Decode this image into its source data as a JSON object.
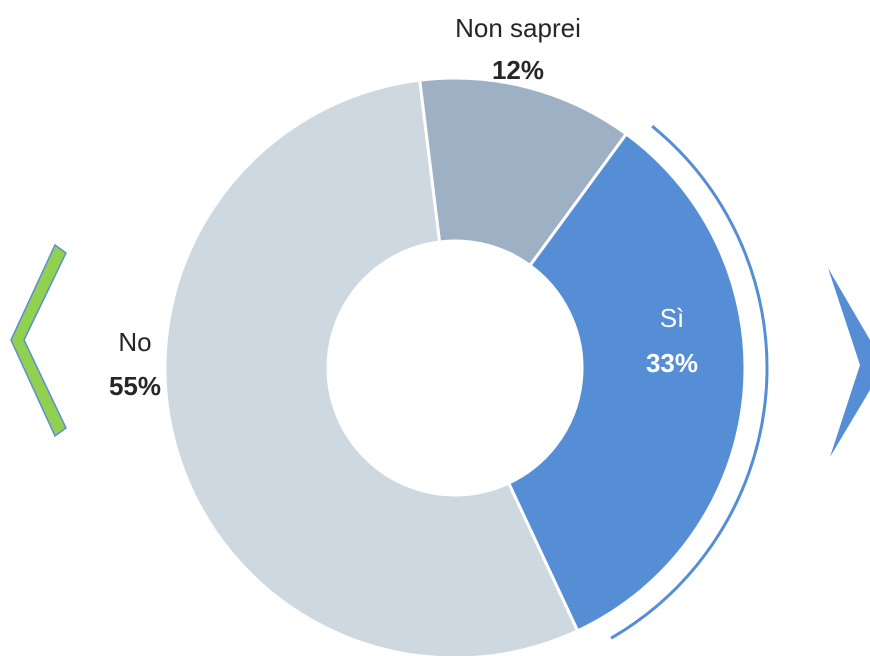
{
  "chart_data": {
    "type": "donut",
    "categories": [
      "Non saprei",
      "Sì",
      "No"
    ],
    "values": [
      12,
      33,
      55
    ],
    "value_labels": [
      "12%",
      "33%",
      "55%"
    ],
    "colors": [
      "#9eb0c4",
      "#558ed5",
      "#cdd8e1"
    ]
  }
}
